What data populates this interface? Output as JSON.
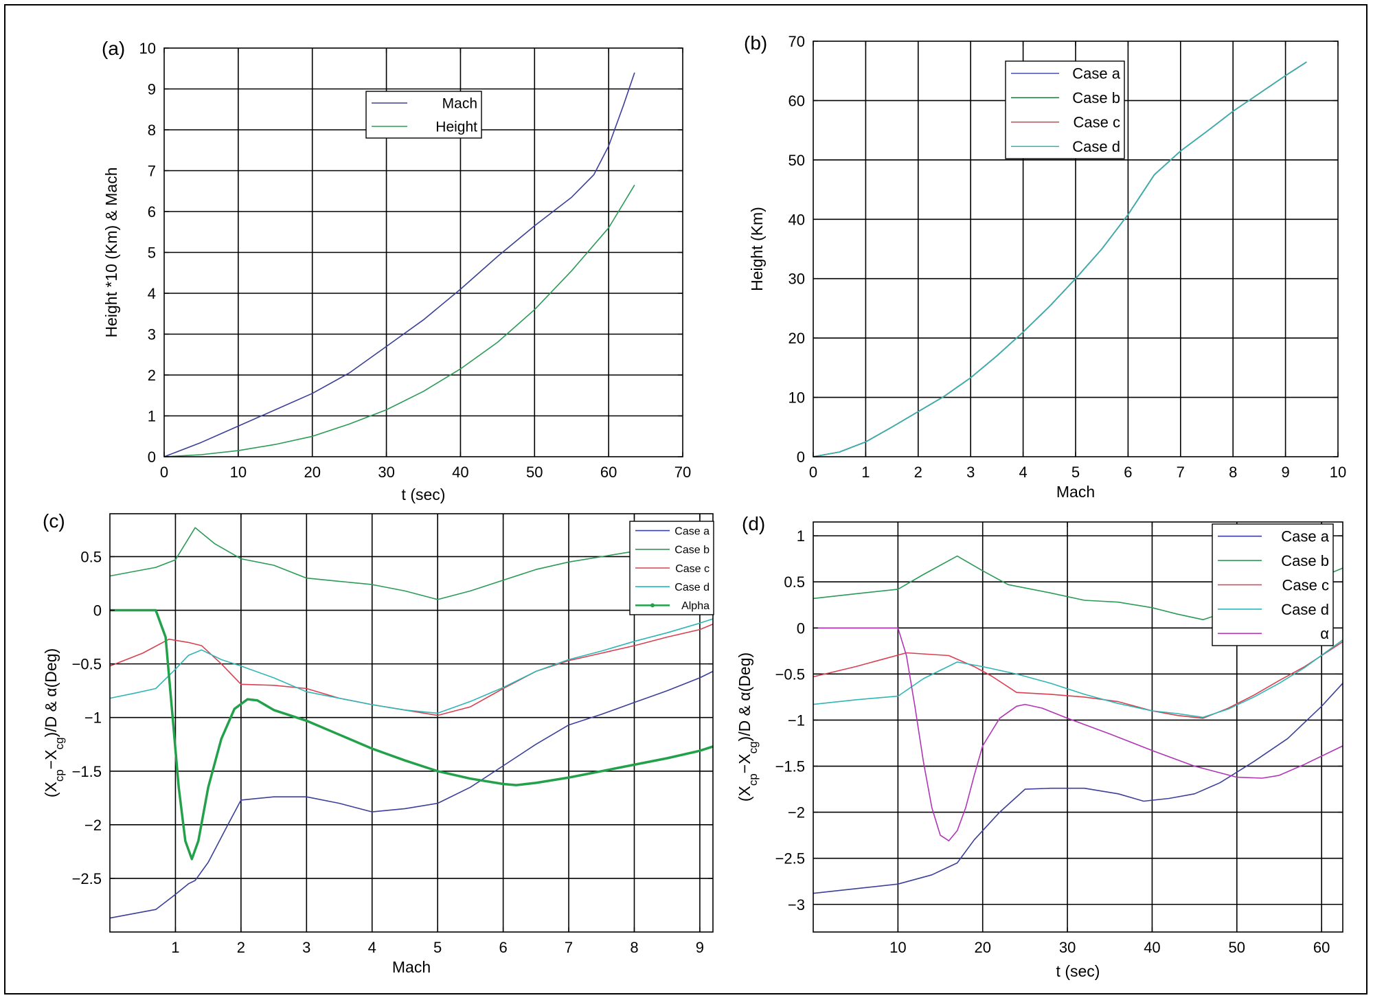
{
  "panels": [
    {
      "id": "a",
      "label": "(a)",
      "xlabel": "t (sec)",
      "ylabel": "Height *10 (Km) & Mach",
      "xlim": [
        0,
        70
      ],
      "ylim": [
        0,
        10
      ],
      "xticks": [
        0,
        10,
        20,
        30,
        40,
        50,
        60,
        70
      ],
      "yticks": [
        0,
        1,
        2,
        3,
        4,
        5,
        6,
        7,
        8,
        9,
        10
      ],
      "legend": [
        "Mach",
        "Height"
      ]
    },
    {
      "id": "b",
      "label": "(b)",
      "xlabel": "Mach",
      "ylabel": "Height (Km)",
      "xlim": [
        0,
        10
      ],
      "ylim": [
        0,
        70
      ],
      "xticks": [
        0,
        1,
        2,
        3,
        4,
        5,
        6,
        7,
        8,
        9,
        10
      ],
      "yticks": [
        0,
        10,
        20,
        30,
        40,
        50,
        60,
        70
      ],
      "legend": [
        "Case a",
        "Case b",
        "Case c",
        "Case d"
      ]
    },
    {
      "id": "c",
      "label": "(c)",
      "xlabel": "Mach",
      "ylabel": "(Xcp−Xcg)/D & α(Deg)",
      "xlim": [
        0,
        9.2
      ],
      "ylim": [
        -3,
        0.9
      ],
      "xticks": [
        1,
        2,
        3,
        4,
        5,
        6,
        7,
        8,
        9
      ],
      "yticks": [
        0.5,
        0,
        -0.5,
        -1,
        -1.5,
        -2,
        -2.5
      ],
      "ytick_labels": [
        "0.5",
        "0",
        "−0.5",
        "−1",
        "−1.5",
        "−2",
        "−2.5"
      ],
      "legend": [
        "Case a",
        "Case b",
        "Case c",
        "Case d",
        "Alpha"
      ]
    },
    {
      "id": "d",
      "label": "(d)",
      "xlabel": "t (sec)",
      "ylabel": "(Xcp−Xcg)/D & α(Deg)",
      "xlim": [
        0,
        62.5
      ],
      "ylim": [
        -3.3,
        1.15
      ],
      "xticks": [
        10,
        20,
        30,
        40,
        50,
        60
      ],
      "yticks": [
        1,
        0.5,
        0,
        -0.5,
        -1,
        -1.5,
        -2,
        -2.5,
        -3
      ],
      "ytick_labels": [
        "1",
        "0.5",
        "0",
        "−0.5",
        "−1",
        "−1.5",
        "−2",
        "−2.5",
        "−3"
      ],
      "legend": [
        "Case a",
        "Case b",
        "Case c",
        "Case d",
        "α"
      ]
    }
  ],
  "chart_data": [
    {
      "type": "line",
      "panel": "a",
      "xlabel": "t (sec)",
      "ylabel": "Height *10 (Km) & Mach",
      "xlim": [
        0,
        70
      ],
      "ylim": [
        0,
        10
      ],
      "grid": true,
      "legend_position": "top-center",
      "series": [
        {
          "name": "Mach",
          "color": "#3a3f9a",
          "x": [
            0,
            5,
            10,
            15,
            20,
            25,
            30,
            35,
            40,
            45,
            50,
            55,
            58,
            60,
            62,
            63.5
          ],
          "y": [
            0,
            0.35,
            0.75,
            1.15,
            1.55,
            2.05,
            2.7,
            3.35,
            4.1,
            4.9,
            5.65,
            6.35,
            6.9,
            7.6,
            8.6,
            9.4
          ]
        },
        {
          "name": "Height",
          "color": "#2a9a55",
          "x": [
            0,
            5,
            10,
            15,
            20,
            25,
            30,
            35,
            40,
            45,
            50,
            55,
            60,
            63.5
          ],
          "y": [
            0,
            0.05,
            0.15,
            0.3,
            0.5,
            0.8,
            1.15,
            1.6,
            2.15,
            2.8,
            3.6,
            4.55,
            5.6,
            6.65
          ]
        }
      ]
    },
    {
      "type": "line",
      "panel": "b",
      "xlabel": "Mach",
      "ylabel": "Height (Km)",
      "xlim": [
        0,
        10
      ],
      "ylim": [
        0,
        70
      ],
      "grid": true,
      "legend_position": "top-center",
      "series": [
        {
          "name": "Case a",
          "color": "#4b4fa6",
          "x": [
            0,
            0.5,
            1,
            1.5,
            2,
            2.5,
            3,
            3.5,
            4,
            4.5,
            5,
            5.5,
            6,
            6.5,
            7,
            7.5,
            8,
            8.5,
            9,
            9.4
          ],
          "y": [
            0,
            0.8,
            2.5,
            5,
            7.6,
            10.2,
            13.3,
            17,
            21,
            25.3,
            30,
            35,
            40.8,
            47.5,
            51.5,
            54.8,
            58.2,
            61.2,
            64.2,
            66.5
          ]
        },
        {
          "name": "Case b",
          "color": "#1e7b3c",
          "x": [
            0,
            0.5,
            1,
            1.5,
            2,
            2.5,
            3,
            3.5,
            4,
            4.5,
            5,
            5.5,
            6,
            6.5,
            7,
            7.5,
            8,
            8.5,
            9,
            9.4
          ],
          "y": [
            0,
            0.8,
            2.5,
            5,
            7.6,
            10.2,
            13.3,
            17,
            21,
            25.3,
            30,
            35,
            40.8,
            47.5,
            51.5,
            54.8,
            58.2,
            61.2,
            64.2,
            66.5
          ]
        },
        {
          "name": "Case c",
          "color": "#d8404f",
          "x": [
            0,
            0.5,
            1,
            1.5,
            2,
            2.5,
            3,
            3.5,
            4,
            4.5,
            5,
            5.5,
            6,
            6.5,
            7,
            7.5,
            8,
            8.5,
            9,
            9.4
          ],
          "y": [
            0,
            0.8,
            2.5,
            5,
            7.6,
            10.2,
            13.3,
            17,
            21,
            25.3,
            30,
            35,
            40.8,
            47.5,
            51.5,
            54.8,
            58.2,
            61.2,
            64.2,
            66.5
          ]
        },
        {
          "name": "Case d",
          "color": "#2fb5b5",
          "x": [
            0,
            0.5,
            1,
            1.5,
            2,
            2.5,
            3,
            3.5,
            4,
            4.5,
            5,
            5.5,
            6,
            6.5,
            7,
            7.5,
            8,
            8.5,
            9,
            9.4
          ],
          "y": [
            0,
            0.8,
            2.5,
            5,
            7.6,
            10.2,
            13.3,
            17,
            21,
            25.3,
            30,
            35,
            40.8,
            47.5,
            51.5,
            54.8,
            58.2,
            61.2,
            64.2,
            66.5
          ]
        }
      ]
    },
    {
      "type": "line",
      "panel": "c",
      "xlabel": "Mach",
      "ylabel": "(Xcp−Xcg)/D & α(Deg)",
      "xlim": [
        0,
        9.2
      ],
      "ylim": [
        -3,
        0.9
      ],
      "grid": true,
      "legend_position": "top-right",
      "series": [
        {
          "name": "Case a",
          "color": "#3a3f9a",
          "x": [
            0,
            0.7,
            1.0,
            1.2,
            1.3,
            1.5,
            1.8,
            2.0,
            2.5,
            3.0,
            3.5,
            4.0,
            4.5,
            5.0,
            5.5,
            6.0,
            6.5,
            7.0,
            7.5,
            8.0,
            8.5,
            9.0,
            9.2
          ],
          "y": [
            -2.87,
            -2.79,
            -2.65,
            -2.55,
            -2.52,
            -2.35,
            -2.0,
            -1.77,
            -1.74,
            -1.74,
            -1.8,
            -1.88,
            -1.85,
            -1.8,
            -1.65,
            -1.45,
            -1.25,
            -1.07,
            -0.97,
            -0.86,
            -0.75,
            -0.63,
            -0.57
          ]
        },
        {
          "name": "Case b",
          "color": "#2a9a55",
          "x": [
            0,
            0.7,
            1.0,
            1.3,
            1.6,
            2.0,
            2.5,
            3.0,
            3.5,
            4.0,
            4.5,
            5.0,
            5.5,
            6.0,
            6.5,
            7.0,
            7.5,
            8.0,
            8.5
          ],
          "y": [
            0.32,
            0.4,
            0.47,
            0.77,
            0.62,
            0.48,
            0.42,
            0.3,
            0.27,
            0.24,
            0.18,
            0.1,
            0.18,
            0.28,
            0.38,
            0.45,
            0.5,
            0.55,
            0.6
          ]
        },
        {
          "name": "Case c",
          "color": "#d8404f",
          "x": [
            0,
            0.5,
            0.9,
            1.2,
            1.4,
            1.7,
            2.0,
            2.5,
            3.0,
            3.5,
            4.0,
            4.5,
            5.0,
            5.5,
            6.0,
            6.5,
            7.0,
            7.5,
            8.0,
            8.5,
            9.0,
            9.2
          ],
          "y": [
            -0.52,
            -0.4,
            -0.27,
            -0.3,
            -0.33,
            -0.5,
            -0.69,
            -0.7,
            -0.73,
            -0.82,
            -0.88,
            -0.93,
            -0.98,
            -0.9,
            -0.73,
            -0.57,
            -0.47,
            -0.4,
            -0.33,
            -0.25,
            -0.18,
            -0.13
          ]
        },
        {
          "name": "Case d",
          "color": "#2fb5b5",
          "x": [
            0,
            0.4,
            0.7,
            1.0,
            1.2,
            1.4,
            1.7,
            2.0,
            2.5,
            3.0,
            3.5,
            4.0,
            4.5,
            5.0,
            5.5,
            6.0,
            6.5,
            7.0,
            7.5,
            8.0,
            8.5,
            9.0,
            9.2
          ],
          "y": [
            -0.82,
            -0.77,
            -0.73,
            -0.55,
            -0.42,
            -0.37,
            -0.46,
            -0.52,
            -0.63,
            -0.76,
            -0.82,
            -0.88,
            -0.93,
            -0.96,
            -0.85,
            -0.72,
            -0.57,
            -0.46,
            -0.38,
            -0.29,
            -0.21,
            -0.12,
            -0.08
          ]
        },
        {
          "name": "Alpha",
          "color": "#22a04a",
          "width": 3.5,
          "x": [
            0,
            0.7,
            0.85,
            0.95,
            1.05,
            1.15,
            1.25,
            1.35,
            1.5,
            1.7,
            1.9,
            2.1,
            2.25,
            2.5,
            3.0,
            3.5,
            4.0,
            4.5,
            5.0,
            5.5,
            6.0,
            6.2,
            6.5,
            7.0,
            7.5,
            8.0,
            8.5,
            9.0,
            9.2
          ],
          "y": [
            0,
            0,
            -0.25,
            -0.95,
            -1.65,
            -2.15,
            -2.32,
            -2.15,
            -1.65,
            -1.2,
            -0.92,
            -0.83,
            -0.84,
            -0.93,
            -1.03,
            -1.16,
            -1.29,
            -1.4,
            -1.5,
            -1.57,
            -1.62,
            -1.63,
            -1.61,
            -1.56,
            -1.5,
            -1.44,
            -1.38,
            -1.31,
            -1.27
          ]
        }
      ]
    },
    {
      "type": "line",
      "panel": "d",
      "xlabel": "t (sec)",
      "ylabel": "(Xcp−Xcg)/D & α(Deg)",
      "xlim": [
        0,
        62.5
      ],
      "ylim": [
        -3.3,
        1.15
      ],
      "grid": true,
      "legend_position": "top-right",
      "series": [
        {
          "name": "Case a",
          "color": "#3a3f9a",
          "x": [
            0,
            5,
            10,
            14,
            17,
            19,
            22,
            25,
            28,
            32,
            36,
            39,
            42,
            45,
            48,
            52,
            56,
            60,
            62.5
          ],
          "y": [
            -2.88,
            -2.83,
            -2.78,
            -2.68,
            -2.55,
            -2.3,
            -2.0,
            -1.75,
            -1.74,
            -1.74,
            -1.8,
            -1.88,
            -1.85,
            -1.8,
            -1.68,
            -1.45,
            -1.2,
            -0.85,
            -0.6
          ]
        },
        {
          "name": "Case b",
          "color": "#2a9a55",
          "x": [
            0,
            5,
            10,
            13,
            17,
            20,
            23,
            28,
            32,
            36,
            40,
            43,
            46,
            49,
            52,
            55,
            58,
            62.5
          ],
          "y": [
            0.32,
            0.37,
            0.42,
            0.58,
            0.78,
            0.62,
            0.47,
            0.38,
            0.3,
            0.28,
            0.22,
            0.15,
            0.09,
            0.18,
            0.28,
            0.38,
            0.48,
            0.65
          ]
        },
        {
          "name": "Case c",
          "color": "#d8404f",
          "x": [
            0,
            5,
            11,
            16,
            19,
            21,
            24,
            28,
            32,
            36,
            40,
            43,
            46,
            49,
            52,
            55,
            58,
            62.5
          ],
          "y": [
            -0.53,
            -0.42,
            -0.27,
            -0.3,
            -0.42,
            -0.52,
            -0.7,
            -0.72,
            -0.75,
            -0.8,
            -0.9,
            -0.95,
            -0.98,
            -0.87,
            -0.73,
            -0.57,
            -0.42,
            -0.15
          ]
        },
        {
          "name": "Case d",
          "color": "#2fb5b5",
          "x": [
            0,
            5,
            10,
            13,
            17,
            20,
            24,
            28,
            32,
            36,
            40,
            43,
            46,
            49,
            52,
            55,
            58,
            62.5
          ],
          "y": [
            -0.83,
            -0.78,
            -0.74,
            -0.55,
            -0.37,
            -0.42,
            -0.5,
            -0.6,
            -0.72,
            -0.82,
            -0.9,
            -0.93,
            -0.97,
            -0.88,
            -0.75,
            -0.6,
            -0.43,
            -0.13
          ]
        },
        {
          "name": "α",
          "color": "#b035b5",
          "x": [
            0,
            10,
            11,
            12,
            13,
            14,
            15,
            16,
            17,
            18,
            19,
            20,
            22,
            24,
            25,
            27,
            30,
            35,
            40,
            45,
            50,
            53,
            55,
            58,
            62.5
          ],
          "y": [
            0,
            0,
            -0.3,
            -0.85,
            -1.45,
            -1.95,
            -2.25,
            -2.31,
            -2.2,
            -1.95,
            -1.6,
            -1.28,
            -0.98,
            -0.85,
            -0.83,
            -0.87,
            -0.98,
            -1.15,
            -1.33,
            -1.5,
            -1.62,
            -1.63,
            -1.6,
            -1.48,
            -1.28
          ]
        }
      ]
    }
  ]
}
